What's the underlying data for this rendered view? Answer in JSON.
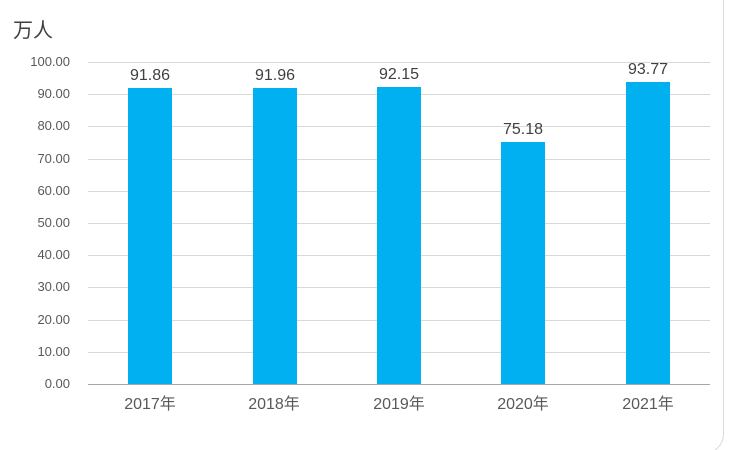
{
  "chart_data": {
    "type": "bar",
    "title": "",
    "unit_label": "万人",
    "categories": [
      "2017年",
      "2018年",
      "2019年",
      "2020年",
      "2021年"
    ],
    "values": [
      91.86,
      91.96,
      92.15,
      75.18,
      93.77
    ],
    "value_labels": [
      "91.86",
      "91.96",
      "92.15",
      "75.18",
      "93.77"
    ],
    "y_ticks": [
      "100.00",
      "90.00",
      "80.00",
      "70.00",
      "60.00",
      "50.00",
      "40.00",
      "30.00",
      "20.00",
      "10.00",
      "0.00"
    ],
    "ylim": [
      0,
      100
    ],
    "grid": true,
    "legend": "none",
    "xlabel": "",
    "ylabel": "万人",
    "colors": {
      "bar": "#00B0F0",
      "gridline": "#D9D9D9",
      "axis_line": "#A6A6A6",
      "tick_text": "#595959",
      "label_text": "#404040",
      "frame_border": "#D9D9D9",
      "background": "#FFFFFF"
    }
  }
}
